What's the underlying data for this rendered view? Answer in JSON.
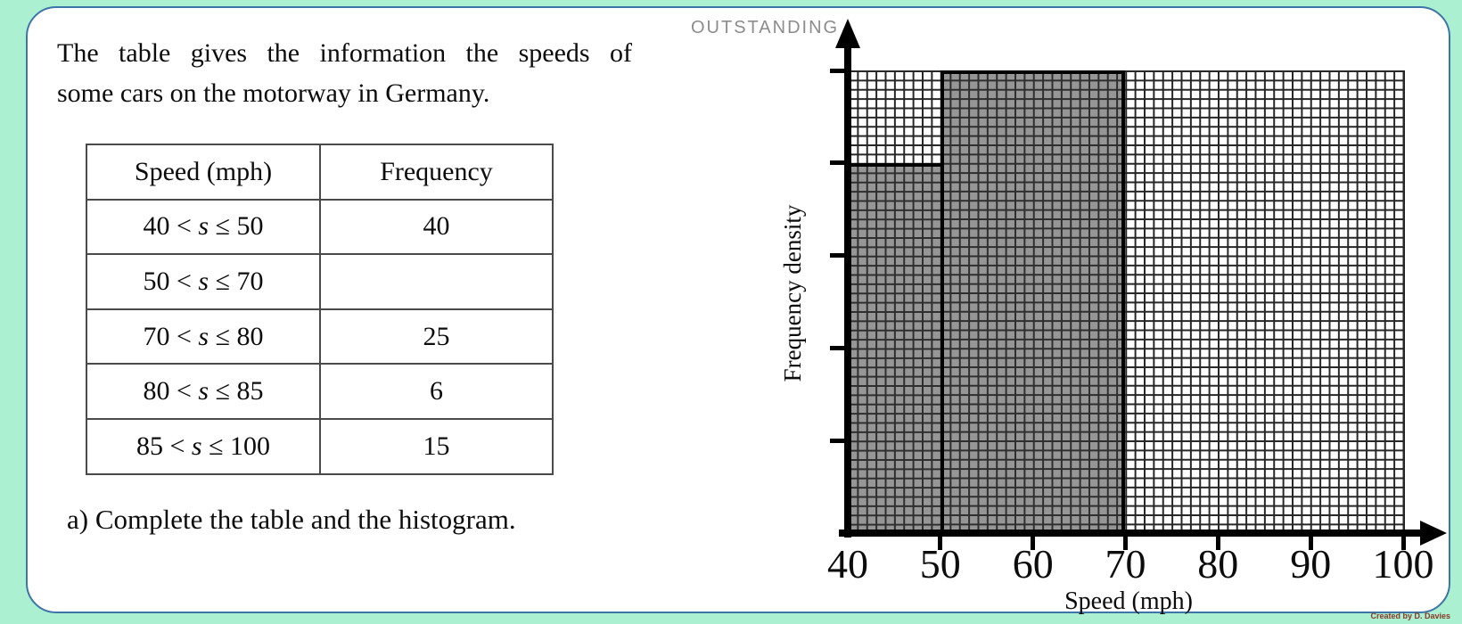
{
  "watermark": "OUTSTANDING",
  "credit": "Created by D. Davies",
  "intro": {
    "line1": "The table gives the information the speeds of",
    "line2": "some cars on the motorway in Germany."
  },
  "task": "a) Complete the table and the histogram.",
  "table": {
    "headers": [
      "Speed (mph)",
      "Frequency"
    ],
    "rows": [
      {
        "pre": "40 < ",
        "var": "s",
        "post": " ≤ 50",
        "freq": "40"
      },
      {
        "pre": "50 < ",
        "var": "s",
        "post": " ≤ 70",
        "freq": ""
      },
      {
        "pre": "70 < ",
        "var": "s",
        "post": " ≤ 80",
        "freq": "25"
      },
      {
        "pre": "80 < ",
        "var": "s",
        "post": " ≤ 85",
        "freq": "6"
      },
      {
        "pre": "85 < ",
        "var": "s",
        "post": " ≤ 100",
        "freq": "15"
      }
    ]
  },
  "chart_data": {
    "type": "bar",
    "subtype": "histogram",
    "title": "",
    "xlabel": "Speed (mph)",
    "ylabel": "Frequency density",
    "xlim": [
      40,
      100
    ],
    "ylim": [
      0,
      5
    ],
    "x_tick_labels": [
      "40",
      "50",
      "60",
      "70",
      "80",
      "90",
      "100"
    ],
    "y_ticks": [
      1,
      2,
      3,
      4,
      5
    ],
    "y_tick_labels": [
      "",
      "",
      "",
      "",
      ""
    ],
    "grid": "graph paper, 10 minor squares per 10 mph and per 1 frequency density unit",
    "bars": [
      {
        "x0": 40,
        "x1": 50,
        "frequency_density": 4
      },
      {
        "x0": 50,
        "x1": 70,
        "frequency_density": 5
      }
    ],
    "colors": {
      "bar_fill": "#969696",
      "bar_border": "#000000",
      "grid_line": "#262626"
    }
  },
  "colors": {
    "background": "#aaf0d1",
    "card_border": "#3f74a8",
    "watermark": "#8c8c8c",
    "credit": "#8b3626"
  }
}
